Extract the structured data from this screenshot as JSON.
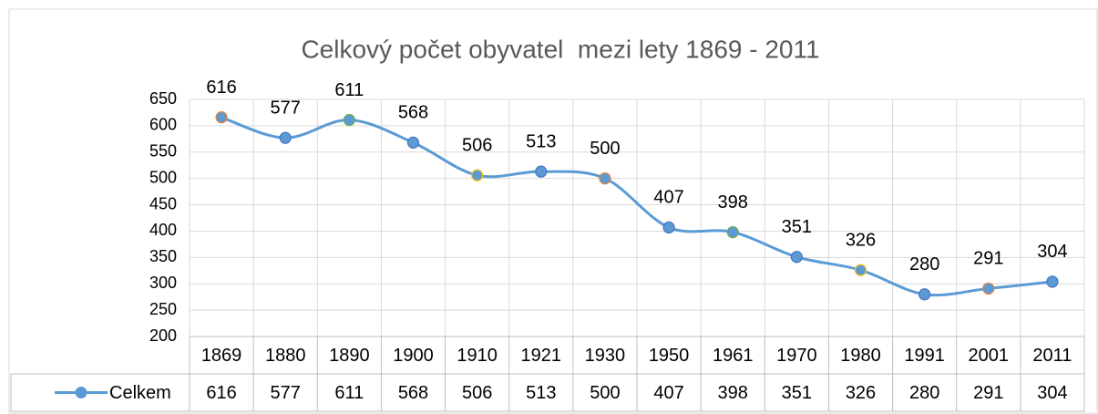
{
  "chart_data": {
    "type": "line",
    "title": "Celkový počet obyvatel  mezi lety 1869 - 2011",
    "categories": [
      "1869",
      "1880",
      "1890",
      "1900",
      "1910",
      "1921",
      "1930",
      "1950",
      "1961",
      "1970",
      "1980",
      "1991",
      "2001",
      "2011"
    ],
    "series": [
      {
        "name": "Celkem",
        "color": "#5b9bd5",
        "values": [
          616,
          577,
          611,
          568,
          506,
          513,
          500,
          407,
          398,
          351,
          326,
          280,
          291,
          304
        ],
        "marker_edge_colors": [
          "#ed7d31",
          "#4472c4",
          "#70ad47",
          "#4472c4",
          "#ffc000",
          "#4472c4",
          "#ed7d31",
          "#4472c4",
          "#70ad47",
          "#4472c4",
          "#ffc000",
          "#4472c4",
          "#ed7d31",
          "#4472c4"
        ]
      }
    ],
    "ylim": [
      200,
      650
    ],
    "yticks": [
      200,
      250,
      300,
      350,
      400,
      450,
      500,
      550,
      600,
      650
    ],
    "grid": true,
    "smooth": true,
    "data_table": true
  }
}
